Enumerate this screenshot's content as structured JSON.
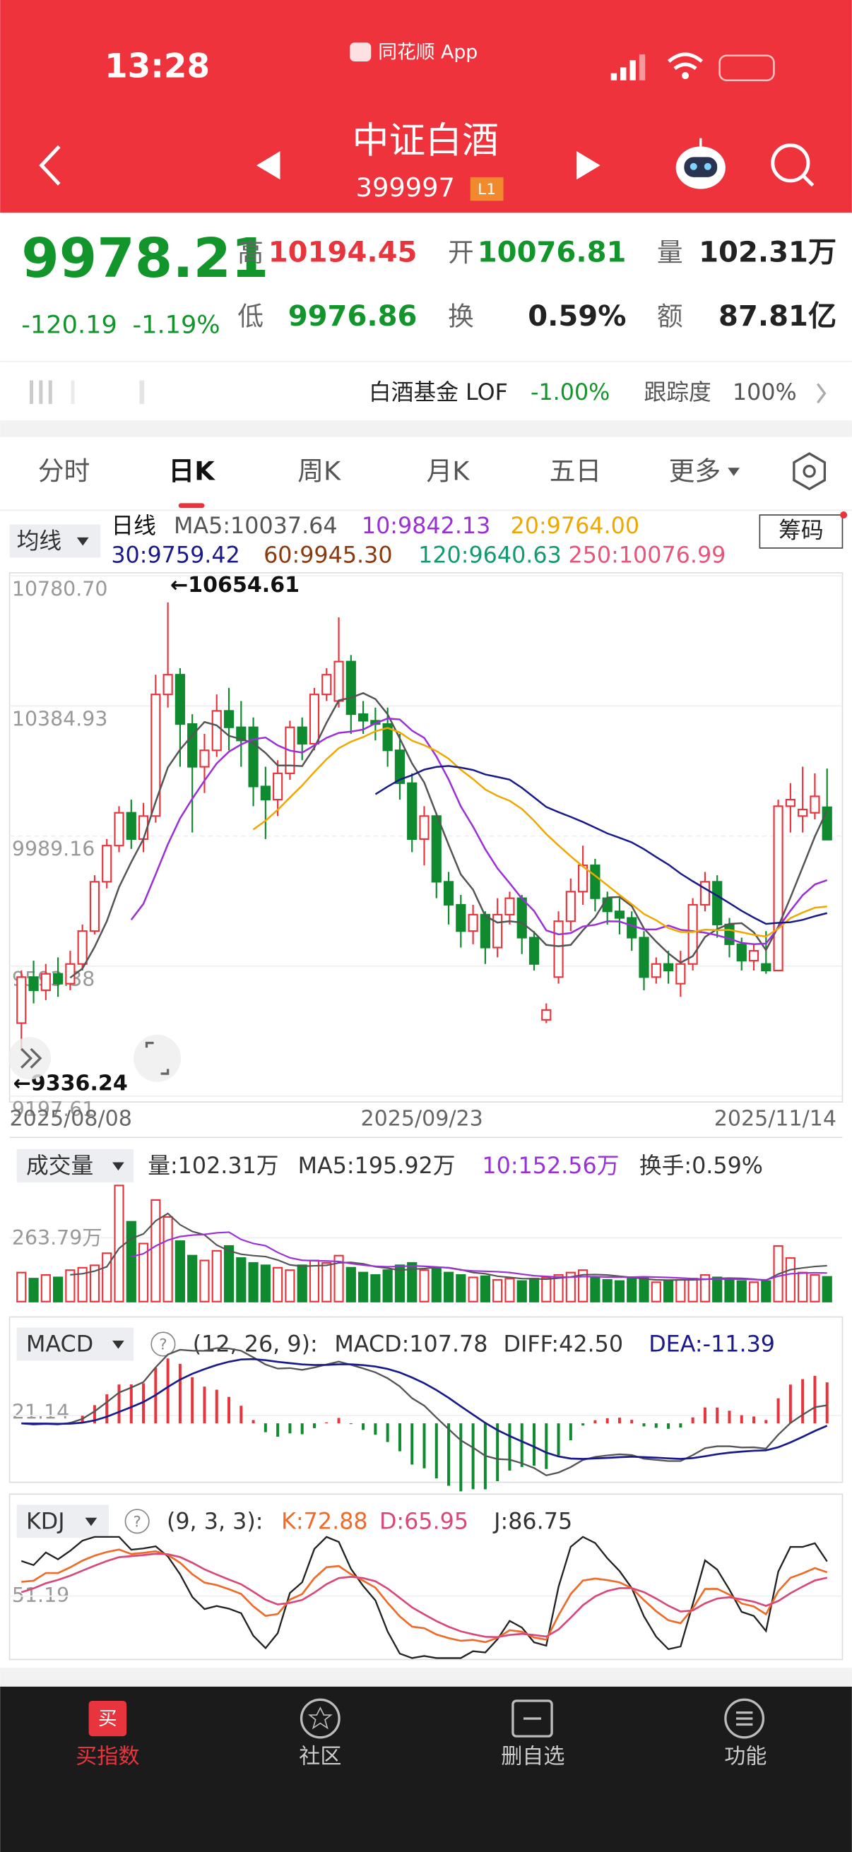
{
  "status": {
    "time": "13:28",
    "app": "同花顺 App"
  },
  "header": {
    "title": "中证白酒",
    "code": "399997",
    "badge": "L1"
  },
  "quote": {
    "price": "9978.21",
    "change": "-120.19",
    "change_pct": "-1.19%",
    "items": [
      {
        "label": "高",
        "value": "10194.45"
      },
      {
        "label": "开",
        "value": "10076.81"
      },
      {
        "label": "量",
        "value": "102.31万"
      },
      {
        "label": "低",
        "value": "9976.86"
      },
      {
        "label": "换",
        "value": "0.59%"
      },
      {
        "label": "额",
        "value": "87.81亿"
      }
    ]
  },
  "fund": {
    "name": "白酒基金 LOF",
    "change": "-1.00%",
    "track_label": "跟踪度",
    "track": "100%"
  },
  "tabs": [
    "分时",
    "日K",
    "周K",
    "月K",
    "五日",
    "更多"
  ],
  "ma_legend": {
    "button": "均线",
    "period": "日线",
    "items": [
      "MA5:10037.64",
      "10:9842.13",
      "20:9764.00",
      "30:9759.42",
      "60:9945.30",
      "120:9640.63",
      "250:10076.99"
    ],
    "chips": "筹码"
  },
  "chart": {
    "type": "candlestick",
    "open": [
      9420,
      9560,
      9520,
      9570,
      9540,
      9600,
      9700,
      9850,
      9960,
      10060,
      9980,
      10050,
      10420,
      10480,
      10330,
      10200,
      10250,
      10370,
      10320,
      10320,
      10140,
      10100,
      10180,
      10320,
      10270,
      10420,
      10400,
      10520,
      10360,
      10340,
      10330,
      10250,
      10150,
      9980,
      10050,
      9850,
      9780,
      9700,
      9750,
      9650,
      9750,
      9800,
      9680,
      9430,
      9560,
      9730,
      9820,
      9900,
      9800,
      9760,
      9740,
      9680,
      9560,
      9600,
      9540,
      9600,
      9780,
      9850,
      9720,
      9660,
      9610,
      9600,
      9580,
      10080,
      10050,
      10060,
      10076.81
    ],
    "high": [
      9580,
      9610,
      9600,
      9620,
      9640,
      9720,
      9870,
      9980,
      10080,
      10100,
      10090,
      10480,
      10700,
      10500,
      10360,
      10300,
      10420,
      10440,
      10400,
      10350,
      10200,
      10220,
      10340,
      10350,
      10440,
      10500,
      10654.61,
      10540,
      10400,
      10380,
      10380,
      10300,
      10180,
      10080,
      10060,
      9880,
      9810,
      9780,
      9760,
      9800,
      9820,
      9810,
      9700,
      9480,
      9760,
      9860,
      9960,
      9920,
      9820,
      9800,
      9760,
      9700,
      9620,
      9640,
      9640,
      9800,
      9880,
      9870,
      9740,
      9680,
      9660,
      9700,
      10100,
      10150,
      10200,
      10180,
      10194.45
    ],
    "low": [
      9336.24,
      9480,
      9490,
      9500,
      9520,
      9580,
      9690,
      9830,
      9940,
      9950,
      9940,
      10030,
      10380,
      10200,
      10000,
      10120,
      10230,
      10250,
      10200,
      10080,
      9980,
      10050,
      10160,
      10220,
      10250,
      10400,
      10380,
      10300,
      10300,
      10280,
      10200,
      10100,
      9940,
      9900,
      9800,
      9720,
      9650,
      9660,
      9600,
      9620,
      9720,
      9630,
      9580,
      9420,
      9540,
      9700,
      9780,
      9760,
      9720,
      9690,
      9640,
      9520,
      9540,
      9540,
      9500,
      9580,
      9760,
      9680,
      9620,
      9580,
      9580,
      9570,
      9580,
      10000,
      10000,
      10040,
      9976.86
    ],
    "close": [
      9560,
      9520,
      9570,
      9540,
      9600,
      9700,
      9850,
      9960,
      10060,
      9980,
      10050,
      10420,
      10480,
      10330,
      10200,
      10250,
      10370,
      10320,
      10280,
      10140,
      10100,
      10180,
      10320,
      10270,
      10420,
      10480,
      10520,
      10360,
      10340,
      10330,
      10250,
      10150,
      9980,
      10050,
      9850,
      9780,
      9700,
      9750,
      9650,
      9750,
      9800,
      9680,
      9600,
      9460,
      9730,
      9820,
      9900,
      9800,
      9760,
      9740,
      9680,
      9560,
      9600,
      9580,
      9600,
      9780,
      9850,
      9720,
      9660,
      9610,
      9640,
      9580,
      10080,
      10100,
      10070,
      10110,
      9978.21
    ],
    "ylim": [
      9180,
      10790
    ],
    "yticks": [
      {
        "value": 10780.7,
        "label": "10780.70"
      },
      10384.93,
      9989.16,
      9593.38,
      9197.61
    ],
    "annotations": [
      "←10654.61",
      "←9336.24"
    ],
    "dates": [
      "2025/08/08",
      "2025/09/23",
      "2025/11/14"
    ],
    "up_color": "#e8353d",
    "down_color": "#0f8a2e"
  },
  "volume": {
    "button": "成交量",
    "legend": [
      "量:102.31万",
      "MA5:195.92万",
      "10:152.56万",
      "换手:0.59%"
    ],
    "values": [
      120,
      95,
      110,
      100,
      130,
      140,
      150,
      200,
      480,
      330,
      240,
      420,
      350,
      250,
      190,
      170,
      210,
      230,
      180,
      160,
      150,
      140,
      130,
      150,
      170,
      160,
      190,
      140,
      120,
      110,
      130,
      150,
      160,
      130,
      140,
      120,
      110,
      100,
      105,
      90,
      95,
      85,
      95,
      100,
      110,
      120,
      130,
      100,
      90,
      85,
      95,
      100,
      80,
      85,
      90,
      95,
      110,
      100,
      90,
      85,
      80,
      85,
      230,
      180,
      120,
      110,
      102.31
    ],
    "ylim": [
      0,
      498
    ],
    "yticks": [
      {
        "value": 263.79,
        "label": "263.79万"
      }
    ]
  },
  "macd": {
    "button": "MACD",
    "params": "(12, 26, 9):",
    "legend": [
      "MACD:107.78",
      "DIFF:42.50",
      "DEA:-11.39"
    ],
    "ylim": [
      -150,
      160
    ],
    "yticks": [
      21.14
    ]
  },
  "kdj": {
    "button": "KDJ",
    "params": "(9, 3, 3):",
    "legend": [
      "K:72.88",
      "D:65.95",
      "J:86.75"
    ],
    "ylim": [
      0,
      100
    ],
    "yticks": [
      51.19
    ]
  },
  "nav": [
    "买指数",
    "社区",
    "删自选",
    "功能"
  ]
}
